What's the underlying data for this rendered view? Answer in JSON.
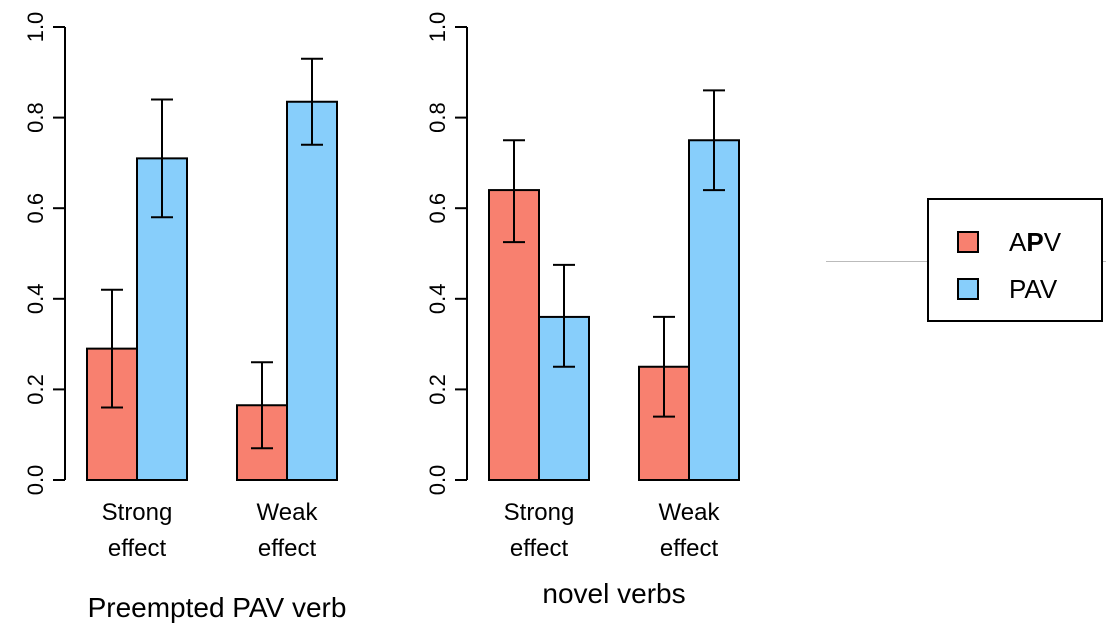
{
  "chart_data": [
    {
      "type": "bar",
      "title": "Preempted PAV verb",
      "categories": [
        "Strong\neffect",
        "Weak\neffect"
      ],
      "series": [
        {
          "name": "APV",
          "values": [
            0.29,
            0.165
          ],
          "error_low": [
            0.16,
            0.07
          ],
          "error_high": [
            0.42,
            0.26
          ]
        },
        {
          "name": "PAV",
          "values": [
            0.71,
            0.835
          ],
          "error_low": [
            0.58,
            0.74
          ],
          "error_high": [
            0.84,
            0.93
          ]
        }
      ],
      "ylim": [
        0,
        1.0
      ],
      "yticks": [
        "0.0",
        "0.2",
        "0.4",
        "0.6",
        "0.8",
        "1.0"
      ],
      "xlabel": "",
      "ylabel": ""
    },
    {
      "type": "bar",
      "title": "novel verbs",
      "categories": [
        "Strong\neffect",
        "Weak\neffect"
      ],
      "series": [
        {
          "name": "APV",
          "values": [
            0.64,
            0.25
          ],
          "error_low": [
            0.525,
            0.14
          ],
          "error_high": [
            0.75,
            0.36
          ]
        },
        {
          "name": "PAV",
          "values": [
            0.36,
            0.75
          ],
          "error_low": [
            0.25,
            0.64
          ],
          "error_high": [
            0.475,
            0.86
          ]
        }
      ],
      "ylim": [
        0,
        1.0
      ],
      "yticks": [
        "0.0",
        "0.2",
        "0.4",
        "0.6",
        "0.8",
        "1.0"
      ],
      "xlabel": "",
      "ylabel": ""
    }
  ],
  "legend": {
    "items": [
      {
        "label_pre": "A",
        "label_bold": "P",
        "label_post": "V",
        "color": "#f8806f"
      },
      {
        "label_pre": "PAV",
        "label_bold": "",
        "label_post": "",
        "color": "#87cefb"
      }
    ],
    "placement": "right"
  }
}
